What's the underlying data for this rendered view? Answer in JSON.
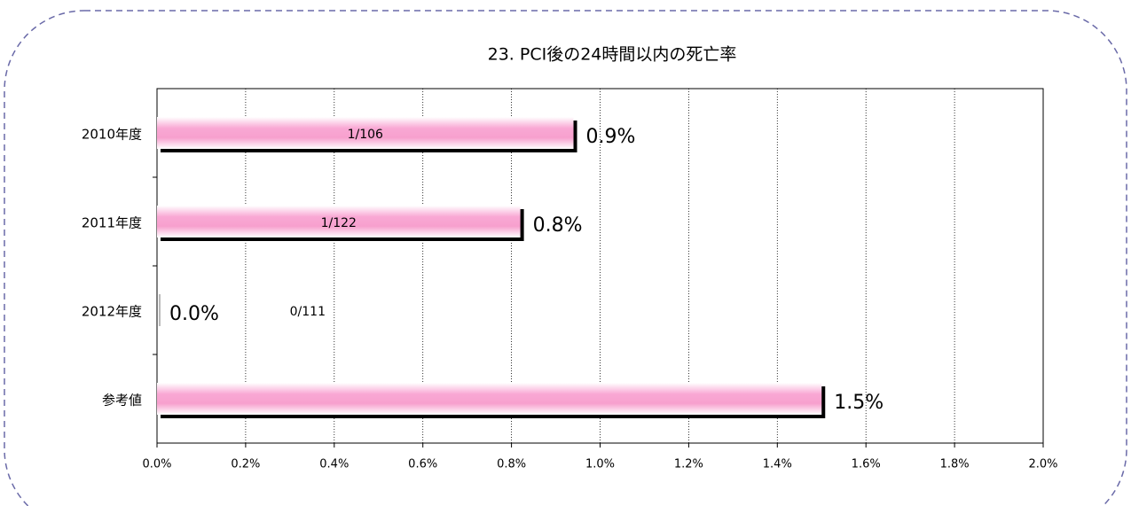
{
  "chart_data": {
    "type": "bar",
    "orientation": "horizontal",
    "title": "23. PCI後の24時間以内の死亡率",
    "categories": [
      "2010年度",
      "2011年度",
      "2012年度",
      "参考値"
    ],
    "values": [
      0.94,
      0.82,
      0,
      1.5
    ],
    "value_labels": [
      "0.9%",
      "0.8%",
      "0.0%",
      "1.5%"
    ],
    "fraction_labels": [
      "1/106",
      "1/122",
      "0/111",
      null
    ],
    "color": "#f9a8d4",
    "xlim": [
      0,
      2
    ],
    "xticks": [
      {
        "value": 0,
        "label": "0.0%"
      },
      {
        "value": 0.2,
        "label": "0.2%"
      },
      {
        "value": 0.4,
        "label": "0.4%"
      },
      {
        "value": 0.6,
        "label": "0.6%"
      },
      {
        "value": 0.8,
        "label": "0.8%"
      },
      {
        "value": 1.0,
        "label": "1.0%"
      },
      {
        "value": 1.2,
        "label": "1.2%"
      },
      {
        "value": 1.4,
        "label": "1.4%"
      },
      {
        "value": 1.6,
        "label": "1.6%"
      },
      {
        "value": 1.8,
        "label": "1.8%"
      },
      {
        "value": 2.0,
        "label": "2.0%"
      }
    ],
    "grid": true
  }
}
